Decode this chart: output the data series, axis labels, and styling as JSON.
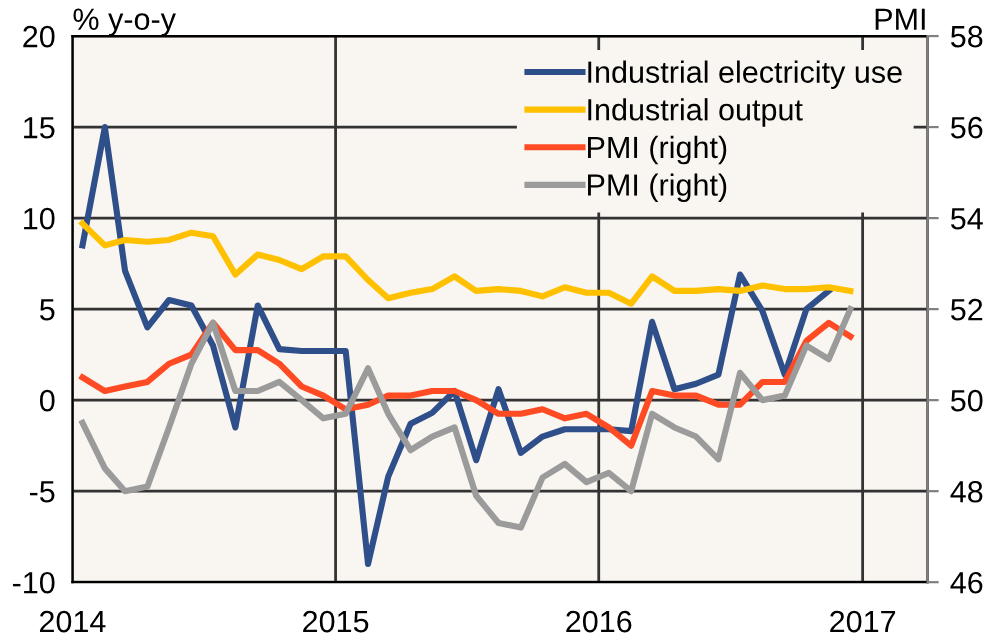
{
  "chart_data": {
    "type": "line",
    "ylabel": "% y-o-y",
    "y2label": "PMI",
    "x": [
      "2014-01-15",
      "2014-02-15",
      "2014-03-15",
      "2014-04-15",
      "2014-05-15",
      "2014-06-15",
      "2014-07-15",
      "2014-08-15",
      "2014-09-15",
      "2014-10-15",
      "2014-11-15",
      "2014-12-15",
      "2015-01-15",
      "2015-02-15",
      "2015-03-15",
      "2015-04-15",
      "2015-05-15",
      "2015-06-15",
      "2015-07-15",
      "2015-08-15",
      "2015-09-15",
      "2015-10-15",
      "2015-11-15",
      "2015-12-15",
      "2016-01-15",
      "2016-02-15",
      "2016-03-15",
      "2016-04-15",
      "2016-05-15",
      "2016-06-15",
      "2016-07-15",
      "2016-08-15",
      "2016-09-15",
      "2016-10-15",
      "2016-11-15",
      "2016-12-15"
    ],
    "series": [
      {
        "name": "Industrial electricity use",
        "color": "#2e4f8a",
        "values": [
          8.5,
          15.0,
          7.1,
          4.0,
          5.5,
          5.2,
          3.0,
          -1.5,
          5.2,
          2.8,
          2.7,
          2.7,
          2.7,
          -9.0,
          -4.2,
          -1.3,
          -0.7,
          0.5,
          -3.3,
          0.6,
          -2.9,
          -2.0,
          -1.6,
          -1.6,
          -1.6,
          -1.7,
          4.3,
          0.6,
          0.9,
          1.4,
          6.9,
          4.9,
          1.4,
          5.0,
          6.0,
          null
        ]
      },
      {
        "name": "Industrial output",
        "color": "#ffc000",
        "values": [
          9.7,
          8.5,
          8.8,
          8.7,
          8.8,
          9.2,
          9.0,
          6.9,
          8.0,
          7.7,
          7.2,
          7.9,
          7.9,
          6.6,
          5.6,
          5.9,
          6.1,
          6.8,
          6.0,
          6.1,
          6.0,
          5.7,
          6.2,
          5.9,
          5.9,
          5.3,
          6.8,
          6.0,
          6.0,
          6.1,
          6.0,
          6.3,
          6.1,
          6.1,
          6.2,
          6.0
        ]
      },
      {
        "name": "PMI (right)",
        "color": "#ff4b23",
        "axis": "y2",
        "values": [
          50.5,
          50.2,
          50.3,
          50.4,
          50.8,
          51.0,
          51.7,
          51.1,
          51.1,
          50.8,
          50.3,
          50.1,
          49.8,
          49.9,
          50.1,
          50.1,
          50.2,
          50.2,
          50.0,
          49.7,
          49.7,
          49.8,
          49.6,
          49.7,
          49.4,
          49.0,
          50.2,
          50.1,
          50.1,
          49.9,
          49.9,
          50.4,
          50.4,
          51.3,
          51.7,
          51.4
        ]
      },
      {
        "name": "PMI (right)",
        "color": "#9b9b9b",
        "axis": "y2",
        "values": [
          49.5,
          48.5,
          48.0,
          48.1,
          49.4,
          50.8,
          51.7,
          50.2,
          50.2,
          50.4,
          50.0,
          49.6,
          49.7,
          50.7,
          49.7,
          48.9,
          49.2,
          49.4,
          47.9,
          47.3,
          47.2,
          48.3,
          48.6,
          48.2,
          48.4,
          48.0,
          49.7,
          49.4,
          49.2,
          48.7,
          50.6,
          50.0,
          50.1,
          51.2,
          50.9,
          52.0
        ]
      }
    ],
    "xlim": [
      "2014-01",
      "2017-04"
    ],
    "xticks": [
      {
        "value": "2014-01",
        "label": "2014"
      },
      {
        "value": "2015-01",
        "label": "2015"
      },
      {
        "value": "2016-01",
        "label": "2016"
      },
      {
        "value": "2017-01",
        "label": "2017"
      }
    ],
    "ylim": [
      -10,
      20
    ],
    "yticks": [
      -10,
      -5,
      0,
      5,
      10,
      15,
      20
    ],
    "y2lim": [
      46,
      58
    ],
    "y2ticks": [
      46,
      48,
      50,
      52,
      54,
      56,
      58
    ],
    "grid": true,
    "legend": "top right",
    "marker": "none",
    "line_style": "solid"
  }
}
